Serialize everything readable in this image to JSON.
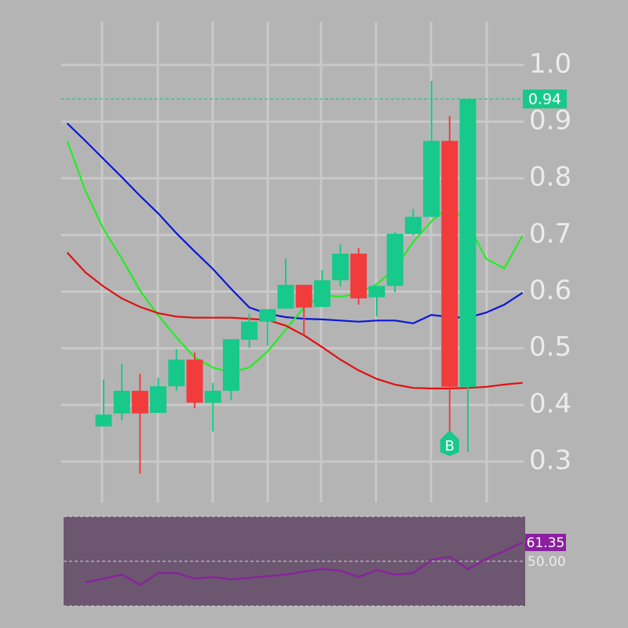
{
  "chart_data": [
    {
      "type": "candlestick",
      "categories": [
        null,
        null,
        null,
        null,
        null,
        null,
        null,
        null,
        null,
        null,
        null,
        null,
        null,
        null,
        null,
        null,
        null,
        null,
        null,
        null,
        null,
        null,
        null,
        null,
        null,
        null
      ],
      "open": [
        null,
        null,
        0.362,
        0.385,
        0.425,
        0.386,
        0.433,
        0.48,
        0.404,
        0.425,
        0.515,
        0.547,
        0.57,
        0.612,
        0.573,
        0.62,
        0.667,
        0.59,
        0.61,
        0.702,
        0.732,
        0.866,
        0.432,
        null,
        null,
        null
      ],
      "high": [
        null,
        null,
        0.445,
        0.473,
        0.455,
        0.448,
        0.498,
        0.493,
        0.439,
        0.516,
        0.561,
        0.569,
        0.658,
        0.612,
        0.638,
        0.683,
        0.677,
        0.61,
        0.705,
        0.746,
        0.972,
        0.91,
        0.94,
        null,
        null,
        null
      ],
      "low": [
        null,
        null,
        0.362,
        0.373,
        0.279,
        0.386,
        0.425,
        0.394,
        0.353,
        0.408,
        0.501,
        0.504,
        0.57,
        0.523,
        0.573,
        0.609,
        0.577,
        0.556,
        0.599,
        0.699,
        0.732,
        0.353,
        0.317,
        null,
        null,
        null
      ],
      "close": [
        null,
        null,
        0.383,
        0.425,
        0.385,
        0.433,
        0.48,
        0.404,
        0.425,
        0.516,
        0.547,
        0.569,
        0.612,
        0.572,
        0.62,
        0.667,
        0.588,
        0.61,
        0.702,
        0.732,
        0.866,
        0.432,
        0.94,
        null,
        null,
        null
      ],
      "up_color": "#17c98b",
      "down_color": "#f23c3c",
      "series": [
        {
          "color": "#0a17d8",
          "values": [
            0.897,
            0.866,
            0.834,
            0.802,
            0.769,
            0.738,
            0.703,
            0.671,
            0.64,
            0.605,
            0.572,
            0.561,
            0.555,
            0.552,
            0.551,
            0.549,
            0.547,
            0.549,
            0.549,
            0.544,
            0.559,
            0.555,
            0.554,
            0.563,
            0.577,
            0.598
          ]
        },
        {
          "color": "#22ee22",
          "values": [
            0.866,
            0.778,
            0.71,
            0.658,
            0.602,
            0.558,
            0.519,
            0.484,
            0.466,
            0.458,
            0.466,
            0.494,
            0.533,
            0.572,
            0.594,
            0.591,
            0.597,
            0.613,
            0.641,
            0.688,
            0.724,
            0.752,
            0.72,
            0.658,
            0.641,
            0.699
          ]
        },
        {
          "color": "#e01010",
          "values": [
            0.669,
            0.634,
            0.609,
            0.588,
            0.573,
            0.562,
            0.556,
            0.554,
            0.554,
            0.554,
            0.552,
            0.55,
            0.54,
            0.523,
            0.502,
            0.48,
            0.461,
            0.446,
            0.436,
            0.43,
            0.429,
            0.429,
            0.43,
            0.432,
            0.436,
            0.439
          ]
        }
      ],
      "last_price": 0.94,
      "annotations": [
        "B"
      ],
      "ylim": [
        0.228,
        1.087
      ],
      "yticks": [
        0.3,
        0.4,
        0.5,
        0.6,
        0.7,
        0.8,
        0.9,
        {
          "value": 1,
          "label": "1.0"
        }
      ],
      "grid": true
    },
    {
      "type": "line",
      "categories": [
        null,
        null,
        null,
        null,
        null,
        null,
        null,
        null,
        null,
        null,
        null,
        null,
        null,
        null,
        null,
        null,
        null,
        null,
        null,
        null,
        null,
        null,
        null,
        null,
        null,
        null
      ],
      "series": [
        {
          "color": "#8b1fa0",
          "values": [
            null,
            37.2,
            39.6,
            41.9,
            35.8,
            42.9,
            42.9,
            39.6,
            40.5,
            39.1,
            40.0,
            41.0,
            41.9,
            43.8,
            45.3,
            44.3,
            40.5,
            44.8,
            41.9,
            42.9,
            50.9,
            52.8,
            45.3,
            51.4,
            56.2,
            61.35
          ]
        }
      ],
      "last_value": 61.35,
      "ylim": [
        23,
        77
      ],
      "yticks": [
        {
          "value": 50,
          "label": "50.00"
        }
      ]
    }
  ]
}
